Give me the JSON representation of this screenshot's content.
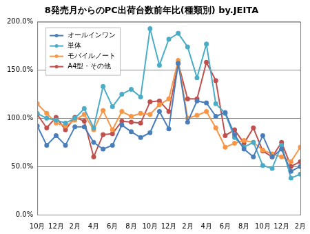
{
  "chart_data": {
    "type": "line",
    "title": "8発売月からのPC出荷台数前年比(種類別) by.JEITA",
    "categories": [
      "10月",
      null,
      "12月",
      null,
      "2月",
      null,
      "4月",
      null,
      "6月",
      null,
      "8月",
      null,
      "10月",
      null,
      "12月",
      null,
      "2月",
      null,
      "4月",
      null,
      "6月",
      null,
      "8月",
      null,
      "10月",
      null,
      "12月",
      null,
      "2月"
    ],
    "series": [
      {
        "name": "オールインワン",
        "color": "#4a7ebb",
        "marker": "circle",
        "values": [
          92,
          72,
          82,
          72,
          91,
          91,
          75,
          68,
          72,
          93,
          86,
          80,
          85,
          107,
          89,
          157,
          96,
          118,
          116,
          102,
          106,
          83,
          68,
          60,
          82,
          60,
          68,
          45,
          50
        ]
      },
      {
        "name": "単体",
        "color": "#4bacc6",
        "marker": "circle",
        "values": [
          105,
          100,
          98,
          95,
          100,
          110,
          90,
          133,
          112,
          125,
          130,
          122,
          193,
          155,
          182,
          188,
          174,
          142,
          177,
          115,
          105,
          80,
          70,
          75,
          51,
          48,
          72,
          38,
          42
        ]
      },
      {
        "name": "モバイルノート",
        "color": "#f79646",
        "marker": "circle",
        "values": [
          115,
          105,
          95,
          92,
          98,
          104,
          88,
          108,
          88,
          107,
          102,
          105,
          104,
          114,
          120,
          160,
          100,
          103,
          107,
          90,
          70,
          74,
          77,
          75,
          67,
          63,
          60,
          55,
          70
        ]
      },
      {
        "name": "A4型・その他",
        "color": "#c0504d",
        "marker": "circle",
        "values": [
          104,
          90,
          101,
          88,
          101,
          97,
          60,
          83,
          84,
          97,
          96,
          95,
          117,
          118,
          107,
          157,
          120,
          120,
          158,
          139,
          82,
          88,
          74,
          90,
          66,
          60,
          75,
          50,
          55
        ]
      }
    ],
    "ylim": [
      0,
      200
    ],
    "yticks": [
      {
        "value": 0,
        "label": "0.0%"
      },
      {
        "value": 50,
        "label": "50.0%"
      },
      {
        "value": 100,
        "label": "100.0%"
      },
      {
        "value": 150,
        "label": "150.0%"
      },
      {
        "value": 200,
        "label": "200.0%"
      }
    ],
    "grid": true,
    "legend": "top-left"
  }
}
